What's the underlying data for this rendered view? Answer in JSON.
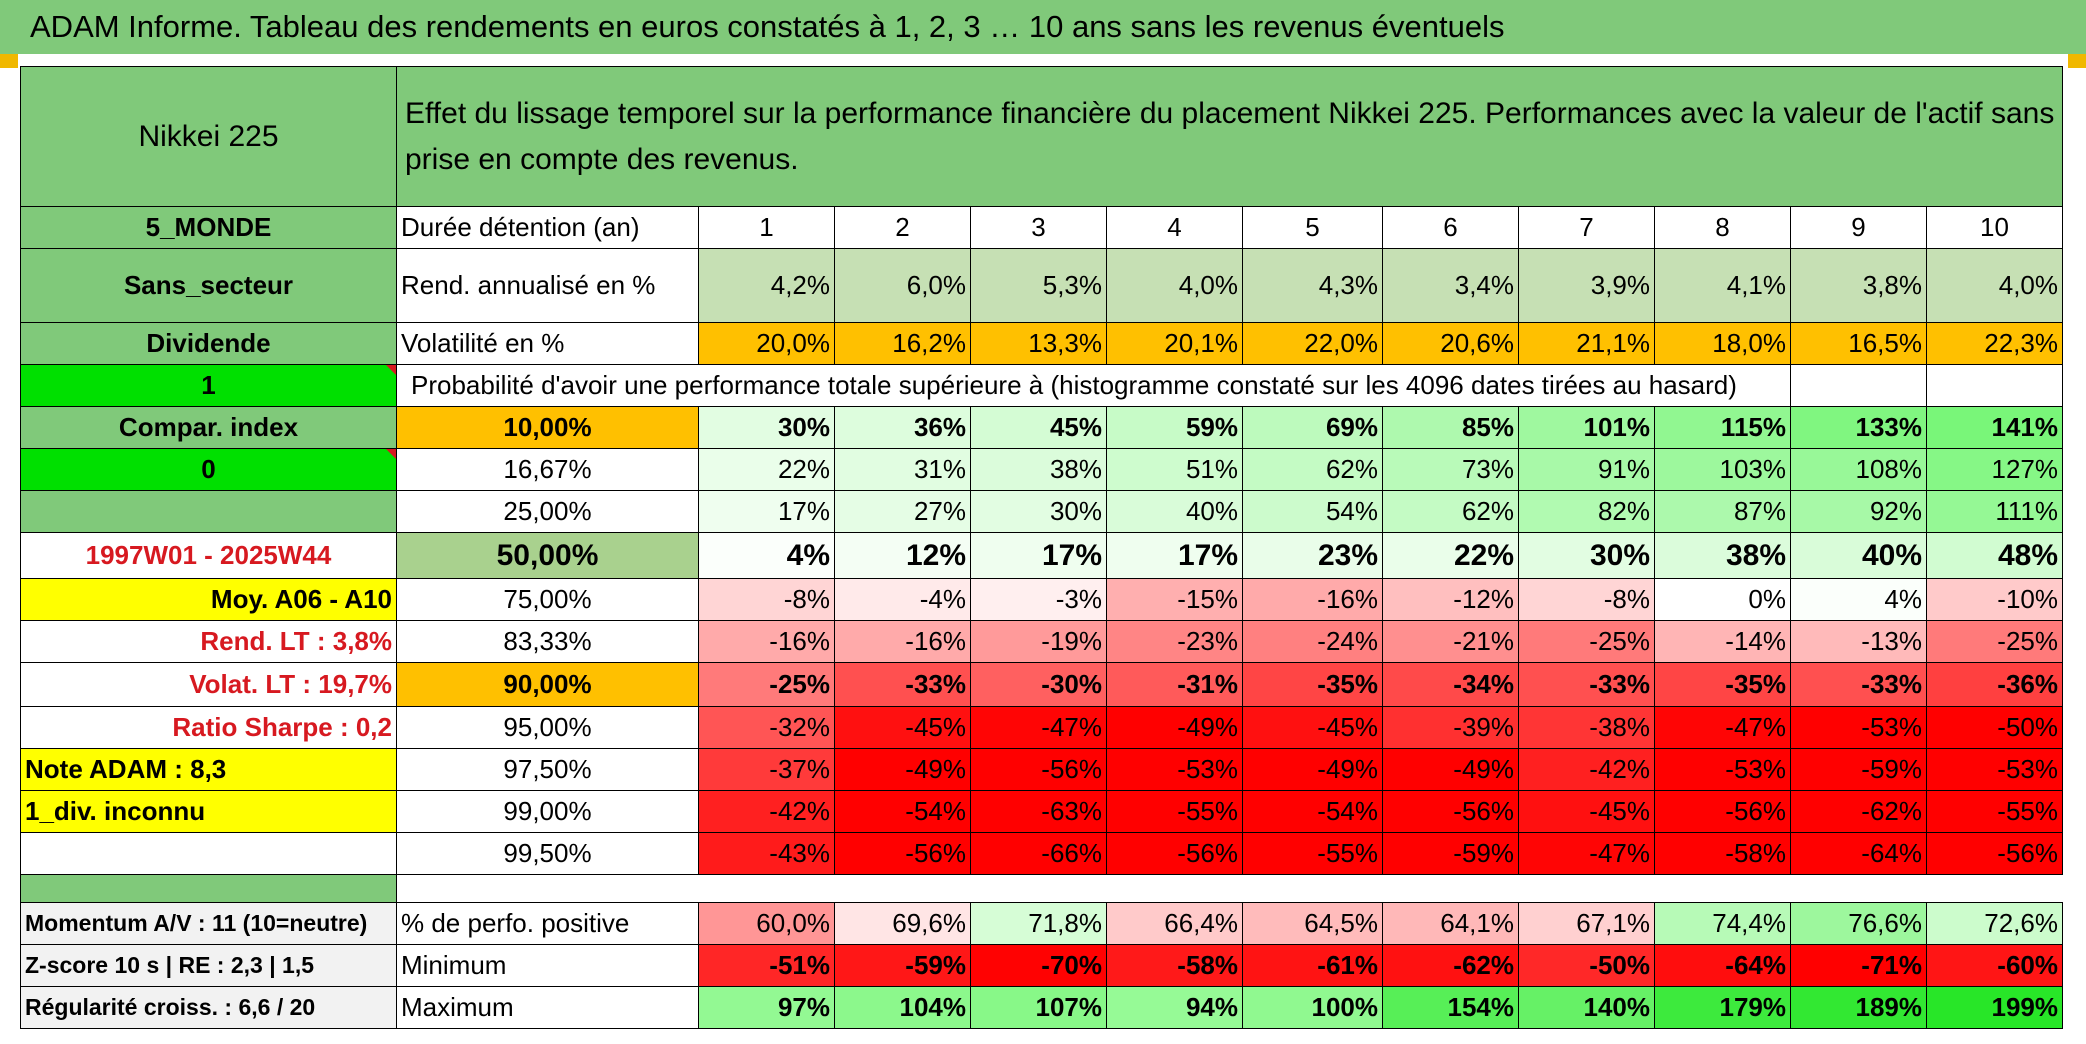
{
  "title": "ADAM Informe. Tableau des rendements en euros constatés à 1, 2, 3 … 10 ans sans les revenus éventuels",
  "asset_name": "Nikkei 225",
  "header_text": "Effet du lissage temporel sur la performance financière du placement Nikkei 225. Performances avec la valeur de l'actif sans prise en compte des revenus.",
  "side": {
    "region": "5_MONDE",
    "sector": "Sans_secteur",
    "dividend": "Dividende",
    "flag1": "1",
    "compar_index": "Compar. index",
    "flag0": "0",
    "period": "1997W01 - 2025W44",
    "avg": "Moy. A06 - A10",
    "rend_lt": "Rend. LT :   3,8%",
    "volat_lt": "Volat. LT :   19,7%",
    "sharpe": "Ratio Sharpe :    0,2",
    "note": "Note ADAM : 8,3",
    "div_status": "1_div. inconnu",
    "momentum": "Momentum A/V : 11 (10=neutre)",
    "zscore": "Z-score 10 s | RE : 2,3 | 1,5",
    "regularity": "Régularité croiss. : 6,6 / 20"
  },
  "labels": {
    "duration": "Durée détention (an)",
    "rend": "Rend. annualisé en %",
    "vol": "Volatilité en %",
    "prob": "Probabilité d'avoir une performance totale supérieure à (histogramme constaté sur les 4096 dates tirées au hasard)",
    "positive": "% de perfo. positive",
    "min": "Minimum",
    "max": "Maximum"
  },
  "years": [
    "1",
    "2",
    "3",
    "4",
    "5",
    "6",
    "7",
    "8",
    "9",
    "10"
  ],
  "rend": [
    "4,2%",
    "6,0%",
    "5,3%",
    "4,0%",
    "4,3%",
    "3,4%",
    "3,9%",
    "4,1%",
    "3,8%",
    "4,0%"
  ],
  "vol": [
    "20,0%",
    "16,2%",
    "13,3%",
    "20,1%",
    "22,0%",
    "20,6%",
    "21,1%",
    "18,0%",
    "16,5%",
    "22,3%"
  ],
  "probs": [
    {
      "p": "10,00%",
      "v": [
        "30%",
        "36%",
        "45%",
        "59%",
        "69%",
        "85%",
        "101%",
        "115%",
        "133%",
        "141%"
      ]
    },
    {
      "p": "16,67%",
      "v": [
        "22%",
        "31%",
        "38%",
        "51%",
        "62%",
        "73%",
        "91%",
        "103%",
        "108%",
        "127%"
      ]
    },
    {
      "p": "25,00%",
      "v": [
        "17%",
        "27%",
        "30%",
        "40%",
        "54%",
        "62%",
        "82%",
        "87%",
        "92%",
        "111%"
      ]
    },
    {
      "p": "50,00%",
      "v": [
        "4%",
        "12%",
        "17%",
        "17%",
        "23%",
        "22%",
        "30%",
        "38%",
        "40%",
        "48%"
      ]
    },
    {
      "p": "75,00%",
      "v": [
        "-8%",
        "-4%",
        "-3%",
        "-15%",
        "-16%",
        "-12%",
        "-8%",
        "0%",
        "4%",
        "-10%"
      ]
    },
    {
      "p": "83,33%",
      "v": [
        "-16%",
        "-16%",
        "-19%",
        "-23%",
        "-24%",
        "-21%",
        "-25%",
        "-14%",
        "-13%",
        "-25%"
      ]
    },
    {
      "p": "90,00%",
      "v": [
        "-25%",
        "-33%",
        "-30%",
        "-31%",
        "-35%",
        "-34%",
        "-33%",
        "-35%",
        "-33%",
        "-36%"
      ]
    },
    {
      "p": "95,00%",
      "v": [
        "-32%",
        "-45%",
        "-47%",
        "-49%",
        "-45%",
        "-39%",
        "-38%",
        "-47%",
        "-53%",
        "-50%"
      ]
    },
    {
      "p": "97,50%",
      "v": [
        "-37%",
        "-49%",
        "-56%",
        "-53%",
        "-49%",
        "-49%",
        "-42%",
        "-53%",
        "-59%",
        "-53%"
      ]
    },
    {
      "p": "99,00%",
      "v": [
        "-42%",
        "-54%",
        "-63%",
        "-55%",
        "-54%",
        "-56%",
        "-45%",
        "-56%",
        "-62%",
        "-55%"
      ]
    },
    {
      "p": "99,50%",
      "v": [
        "-43%",
        "-56%",
        "-66%",
        "-56%",
        "-55%",
        "-59%",
        "-47%",
        "-58%",
        "-64%",
        "-56%"
      ]
    }
  ],
  "positive": [
    "60,0%",
    "69,6%",
    "71,8%",
    "66,4%",
    "64,5%",
    "64,1%",
    "67,1%",
    "74,4%",
    "76,6%",
    "72,6%"
  ],
  "min": [
    "-51%",
    "-59%",
    "-70%",
    "-58%",
    "-61%",
    "-62%",
    "-50%",
    "-64%",
    "-71%",
    "-60%"
  ],
  "max": [
    "97%",
    "104%",
    "107%",
    "94%",
    "100%",
    "154%",
    "140%",
    "179%",
    "189%",
    "199%"
  ],
  "colors": {
    "header_green": "#80c97a",
    "lime": "#00e000",
    "orange": "#ffc000",
    "yellow": "#ffff00",
    "accent_red": "#d71920"
  }
}
